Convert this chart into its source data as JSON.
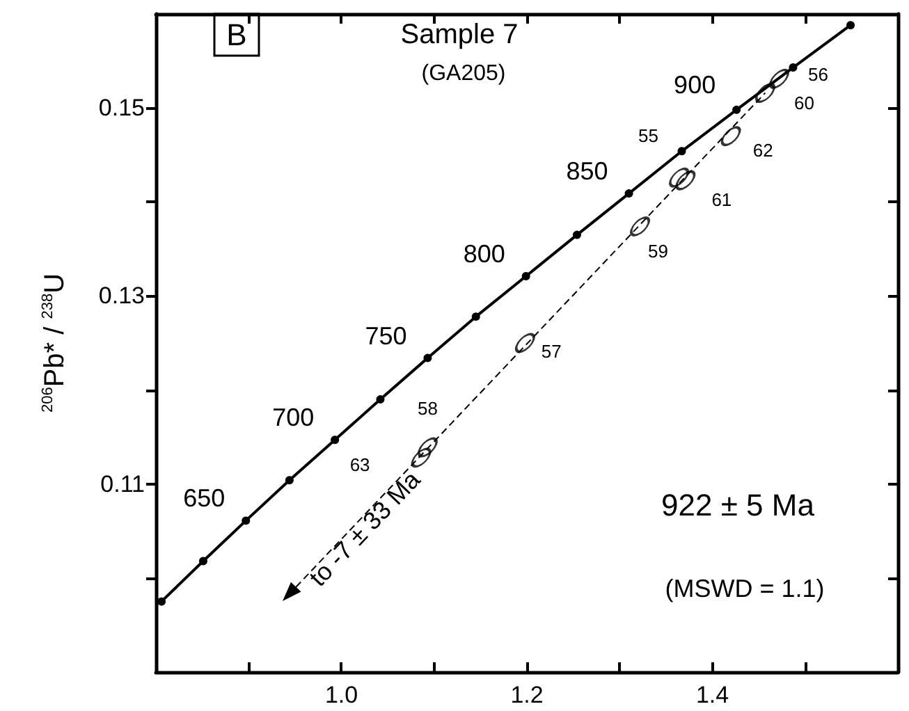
{
  "chart_data": {
    "type": "line",
    "ylabel": "$^{206}$Pb* / $^{238}$U",
    "xlim": [
      0.8,
      1.6
    ],
    "ylim": [
      0.09,
      0.16
    ],
    "xticks": [
      {
        "value": 0.9,
        "label": null
      },
      {
        "value": 1.0,
        "label": "1.0"
      },
      {
        "value": 1.1,
        "label": null
      },
      {
        "value": 1.2,
        "label": "1.2"
      },
      {
        "value": 1.3,
        "label": null
      },
      {
        "value": 1.4,
        "label": "1.4"
      },
      {
        "value": 1.5,
        "label": null
      }
    ],
    "yticks": [
      {
        "value": 0.1,
        "label": null
      },
      0.11,
      {
        "value": 0.12,
        "label": null
      },
      0.13,
      {
        "value": 0.14,
        "label": null
      },
      0.15
    ],
    "grid": false,
    "annotations": [
      "B",
      "Sample 7",
      "(GA205)",
      "922 ± 5 Ma",
      "(MSWD = 1.1)",
      "to -7 ± 33 Ma",
      {
        "text": "650",
        "x": 0.897,
        "y": 0.1061
      },
      {
        "text": "700",
        "x": 0.993,
        "y": 0.1147
      },
      {
        "text": "750",
        "x": 1.093,
        "y": 0.1234
      },
      {
        "text": "800",
        "x": 1.199,
        "y": 0.1321
      },
      {
        "text": "850",
        "x": 1.31,
        "y": 0.1409
      },
      {
        "text": "900",
        "x": 1.426,
        "y": 0.1498
      },
      {
        "text": "55",
        "x": 1.364,
        "y": 0.1426
      },
      {
        "text": "56",
        "x": 1.472,
        "y": 0.1531
      },
      {
        "text": "57",
        "x": 1.198,
        "y": 0.125
      },
      {
        "text": "58",
        "x": 1.093,
        "y": 0.1139
      },
      {
        "text": "59",
        "x": 1.322,
        "y": 0.1374
      },
      {
        "text": "60",
        "x": 1.457,
        "y": 0.1516
      },
      {
        "text": "61",
        "x": 1.371,
        "y": 0.1423
      },
      {
        "text": "62",
        "x": 1.42,
        "y": 0.147
      },
      {
        "text": "63",
        "x": 1.086,
        "y": 0.1128
      }
    ],
    "series": [
      {
        "color": "#000000",
        "marker": "circle",
        "line_style": "solid",
        "x": [
          0.806,
          0.851,
          0.897,
          0.944,
          0.993,
          1.042,
          1.093,
          1.145,
          1.199,
          1.254,
          1.31,
          1.367,
          1.426,
          1.487,
          1.549
        ],
        "values": [
          0.0975,
          0.1018,
          0.1061,
          0.1104,
          0.1147,
          0.119,
          0.1234,
          0.1278,
          0.1321,
          0.1365,
          0.1409,
          0.1454,
          0.1498,
          0.1543,
          0.1588
        ]
      },
      {
        "type": "scatter",
        "color": "#000000",
        "x": [
          1.364,
          1.472,
          1.198,
          1.093,
          1.322,
          1.457,
          1.371,
          1.42,
          1.086
        ],
        "values": [
          0.1426,
          0.1531,
          0.125,
          0.1139,
          0.1374,
          0.1516,
          0.1423,
          0.147,
          0.1128
        ]
      }
    ]
  }
}
